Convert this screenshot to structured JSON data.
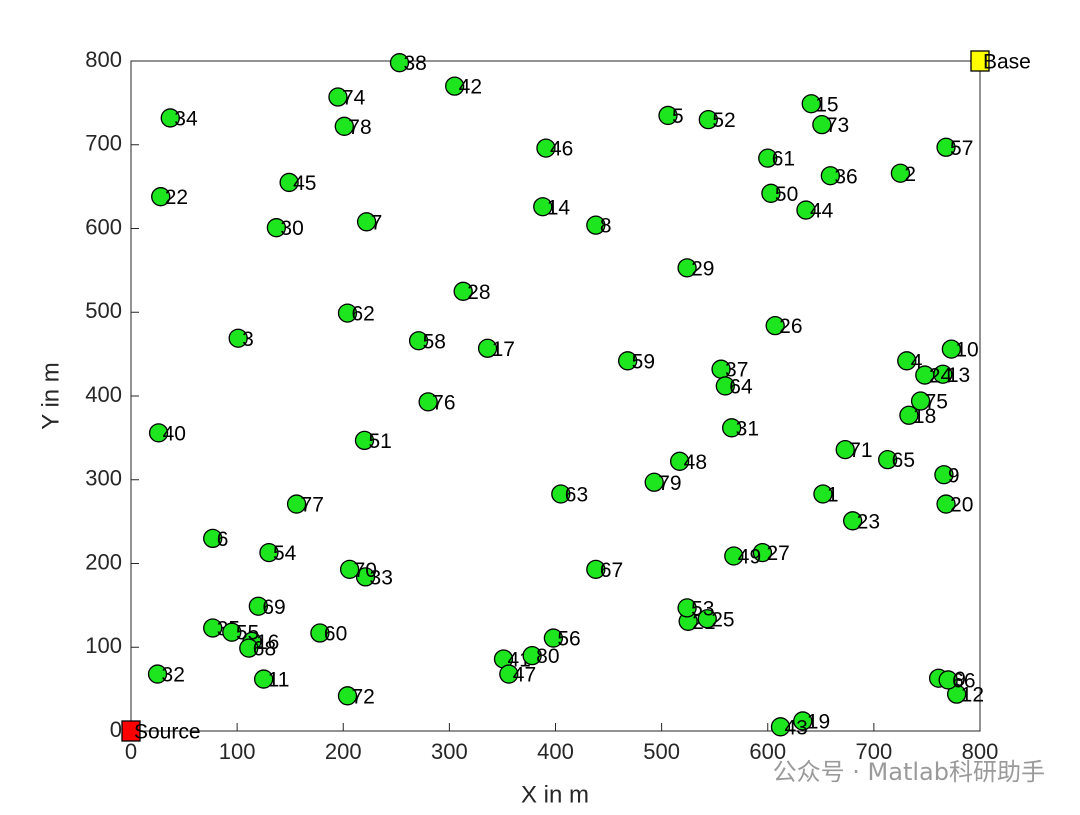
{
  "chart_data": {
    "type": "scatter",
    "x_label": "X in m",
    "y_label": "Y in m",
    "xlim": [
      0,
      800
    ],
    "ylim": [
      0,
      800
    ],
    "xticks": [
      0,
      100,
      200,
      300,
      400,
      500,
      600,
      700,
      800
    ],
    "yticks": [
      0,
      100,
      200,
      300,
      400,
      500,
      600,
      700,
      800
    ],
    "color": "#1ee61e",
    "labels": [
      "1",
      "2",
      "3",
      "4",
      "5",
      "6",
      "7",
      "8",
      "9",
      "10",
      "11",
      "12",
      "13",
      "14",
      "15",
      "16",
      "17",
      "18",
      "19",
      "20",
      "21",
      "22",
      "23",
      "24",
      "25",
      "26",
      "27",
      "28",
      "29",
      "30",
      "31",
      "32",
      "33",
      "34",
      "35",
      "36",
      "37",
      "38",
      "39",
      "40",
      "41",
      "42",
      "43",
      "44",
      "45",
      "46",
      "47",
      "48",
      "49",
      "50",
      "51",
      "52",
      "53",
      "54",
      "55",
      "56",
      "57",
      "58",
      "59",
      "60",
      "61",
      "62",
      "63",
      "64",
      "65",
      "66",
      "67",
      "68",
      "69",
      "70",
      "71",
      "72",
      "73",
      "74",
      "75",
      "76",
      "77",
      "78",
      "79",
      "80"
    ],
    "x": [
      652,
      725,
      101,
      731,
      506,
      77,
      222,
      438,
      766,
      773,
      125,
      778,
      765,
      388,
      641,
      114,
      336,
      733,
      633,
      768,
      525,
      28,
      680,
      748,
      543,
      607,
      595,
      313,
      524,
      137,
      566,
      25,
      221,
      37,
      77,
      659,
      556,
      253,
      761,
      26,
      351,
      305,
      612,
      636,
      149,
      391,
      356,
      517,
      568,
      603,
      220,
      544,
      524,
      130,
      95,
      398,
      768,
      271,
      468,
      178,
      600,
      204,
      405,
      560,
      713,
      770,
      438,
      111,
      120,
      206,
      673,
      204,
      651,
      195,
      744,
      280,
      156,
      201,
      493,
      378
    ],
    "y": [
      283,
      666,
      469,
      442,
      735,
      230,
      608,
      604,
      306,
      456,
      62,
      44,
      426,
      626,
      749,
      107,
      457,
      377,
      12,
      271,
      131,
      638,
      251,
      425,
      134,
      484,
      213,
      525,
      553,
      601,
      362,
      68,
      184,
      732,
      123,
      663,
      432,
      798,
      63,
      356,
      86,
      770,
      5,
      622,
      655,
      696,
      68,
      322,
      209,
      642,
      347,
      730,
      147,
      213,
      118,
      111,
      697,
      466,
      442,
      117,
      684,
      499,
      283,
      412,
      324,
      61,
      193,
      99,
      149,
      193,
      336,
      42,
      724,
      757,
      394,
      393,
      271,
      722,
      297,
      90
    ],
    "special_points": [
      {
        "name": "Source",
        "x": 0,
        "y": 0,
        "color": "#ff0000"
      },
      {
        "name": "Base",
        "x": 800,
        "y": 800,
        "color": "#ffff00"
      }
    ]
  },
  "watermark": "公众号 · Matlab科研助手"
}
